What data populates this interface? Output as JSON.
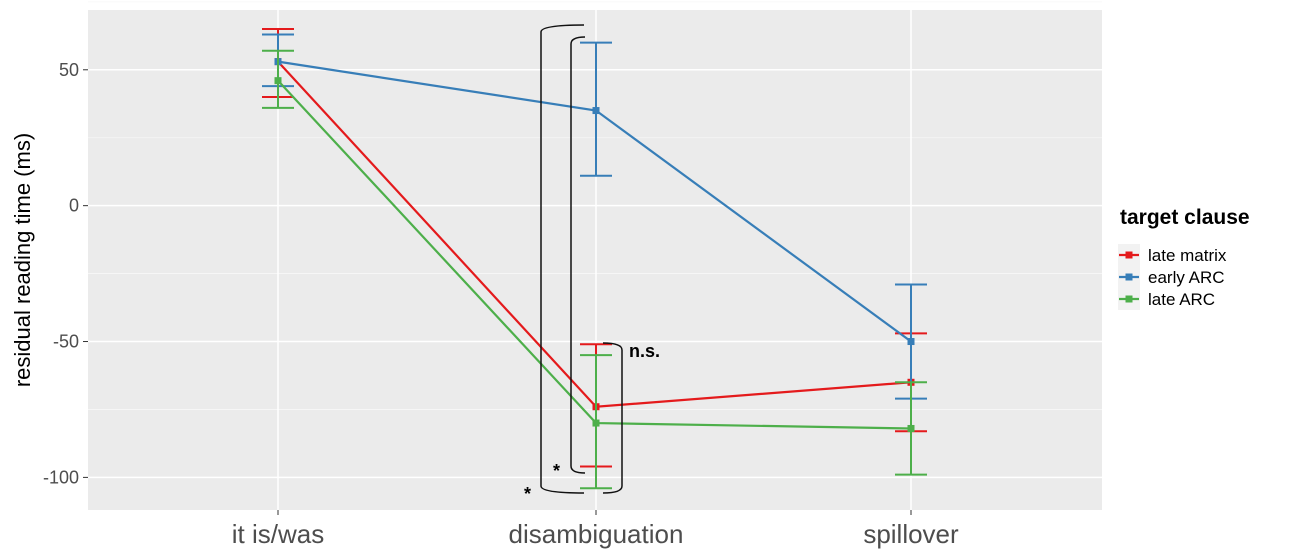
{
  "chart_data": {
    "type": "line",
    "title": "",
    "xlabel": "",
    "ylabel": "residual reading time (ms)",
    "ylim": [
      -112,
      72
    ],
    "yticks": [
      50,
      0,
      -50,
      -100
    ],
    "ytick_labels": [
      "50",
      "0",
      "-50",
      "-100"
    ],
    "categories": [
      "it is/was",
      "disambiguation",
      "spillover"
    ],
    "grid": true,
    "legend_position": "right",
    "legend_title": "target clause",
    "series": [
      {
        "name": "late matrix",
        "color": "#E41A1C",
        "values": [
          53,
          -74,
          -65
        ],
        "err_low": [
          40,
          -96,
          -83
        ],
        "err_high": [
          65,
          -51,
          -47
        ]
      },
      {
        "name": "early ARC",
        "color": "#377EB8",
        "values": [
          53,
          35,
          -50
        ],
        "err_low": [
          44,
          11,
          -71
        ],
        "err_high": [
          63,
          60,
          -29
        ]
      },
      {
        "name": "late ARC",
        "color": "#4DAF4A",
        "values": [
          46,
          -80,
          -82
        ],
        "err_low": [
          36,
          -104,
          -99
        ],
        "err_high": [
          57,
          -55,
          -65
        ]
      }
    ],
    "annotations": [
      {
        "text": "n.s.",
        "between": [
          "late matrix",
          "late ARC"
        ],
        "category": "disambiguation"
      },
      {
        "text": "*",
        "between": [
          "late matrix",
          "early ARC"
        ],
        "category": "disambiguation"
      },
      {
        "text": "*",
        "between": [
          "late ARC",
          "early ARC"
        ],
        "category": "disambiguation"
      }
    ]
  }
}
